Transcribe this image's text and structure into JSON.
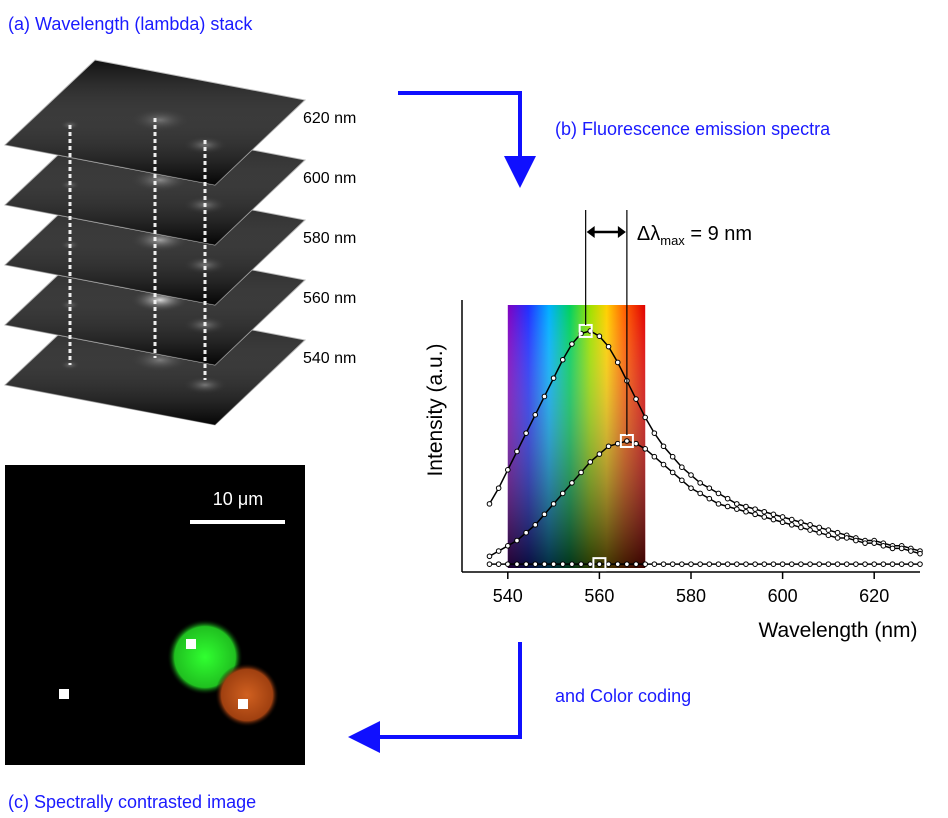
{
  "panels": {
    "a": "(a) Wavelength (lambda) stack",
    "b": "(b) Fluorescence emission spectra",
    "c": "(c) Spectrally contrasted image"
  },
  "stack_labels": [
    "620 nm",
    "600 nm",
    "580 nm",
    "560 nm",
    "540 nm"
  ],
  "scale_bar": "10 μm",
  "arrow_label": "and Color coding",
  "chart_data": {
    "type": "line",
    "xlabel": "Wavelength (nm)",
    "ylabel": "Intensity (a.u.)",
    "xlim": [
      530,
      630
    ],
    "ylim": [
      0,
      100
    ],
    "xticks": [
      540,
      560,
      580,
      600,
      620
    ],
    "spectrum_band": [
      540,
      570
    ],
    "annotation": {
      "prefix": "Δλ",
      "sub": "max",
      "suffix": " = 9 nm"
    },
    "peak_lines": [
      557,
      566
    ],
    "peak_markers": [
      {
        "x": 557,
        "y": 92
      },
      {
        "x": 566,
        "y": 50
      },
      {
        "x": 560,
        "y": 3
      }
    ],
    "x": [
      536,
      538,
      540,
      542,
      544,
      546,
      548,
      550,
      552,
      554,
      556,
      558,
      560,
      562,
      564,
      566,
      568,
      570,
      572,
      574,
      576,
      578,
      580,
      582,
      584,
      586,
      588,
      590,
      592,
      594,
      596,
      598,
      600,
      602,
      604,
      606,
      608,
      610,
      612,
      614,
      616,
      618,
      620,
      622,
      624,
      626,
      628,
      630
    ],
    "series": [
      {
        "color": "#000000",
        "values": [
          26,
          32,
          39,
          46,
          53,
          60,
          67,
          74,
          81,
          87,
          91,
          92,
          90,
          86,
          80,
          73,
          66,
          59,
          53,
          48,
          44,
          40,
          37,
          34,
          32,
          30,
          28,
          26,
          25,
          24,
          23,
          22,
          21,
          20,
          19,
          18,
          17,
          16,
          15,
          14,
          13,
          12,
          12,
          11,
          10,
          10,
          9,
          8
        ]
      },
      {
        "color": "#000000",
        "values": [
          6,
          8,
          10,
          12,
          15,
          18,
          22,
          26,
          30,
          34,
          38,
          42,
          45,
          48,
          49,
          50,
          49,
          47,
          44,
          41,
          38,
          35,
          32,
          30,
          28,
          26,
          25,
          24,
          23,
          22,
          21,
          20,
          19,
          18,
          17,
          16,
          15,
          14,
          13,
          13,
          12,
          11,
          11,
          10,
          9,
          9,
          8,
          7
        ]
      },
      {
        "color": "#000000",
        "values": [
          3,
          3,
          3,
          3,
          3,
          3,
          3,
          3,
          3,
          3,
          3,
          3,
          3,
          3,
          3,
          3,
          3,
          3,
          3,
          3,
          3,
          3,
          3,
          3,
          3,
          3,
          3,
          3,
          3,
          3,
          3,
          3,
          3,
          3,
          3,
          3,
          3,
          3,
          3,
          3,
          3,
          3,
          3,
          3,
          3,
          3,
          3,
          3
        ]
      }
    ]
  }
}
